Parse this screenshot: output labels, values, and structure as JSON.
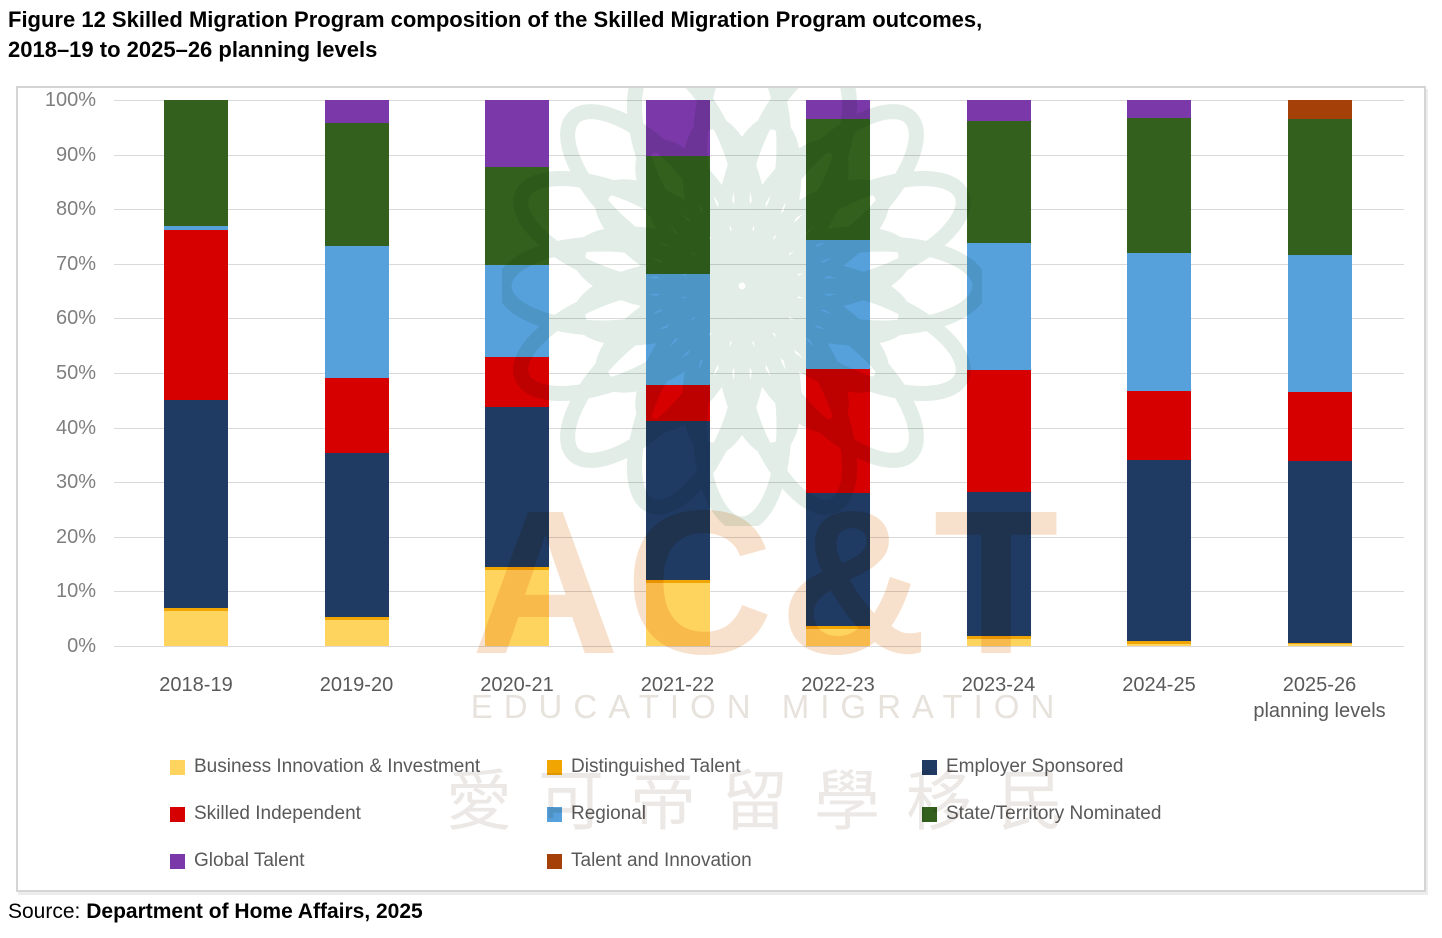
{
  "title": {
    "line1": "Figure 12 Skilled Migration Program composition of the Skilled Migration Program outcomes,",
    "line2": "2018–19 to 2025–26 planning levels"
  },
  "source": {
    "prefix": "Source: ",
    "bold": "Department of Home Affairs, 2025"
  },
  "watermark": {
    "brand": "AC&T",
    "subtitle": "EDUCATION MIGRATION",
    "cjk": "愛可帝留學移民"
  },
  "chart_data": {
    "type": "bar",
    "stacked": true,
    "percent": true,
    "title": "Skilled Migration Program composition, 2018–19 to 2025–26 planning levels",
    "xlabel": "",
    "ylabel": "",
    "ylim": [
      0,
      100
    ],
    "grid": true,
    "legend_position": "bottom",
    "y_ticks": [
      "100%",
      "90%",
      "80%",
      "70%",
      "60%",
      "50%",
      "40%",
      "30%",
      "20%",
      "10%",
      "0%"
    ],
    "categories": [
      "2018-19",
      "2019-20",
      "2020-21",
      "2021-22",
      "2022-23",
      "2023-24",
      "2024-25",
      "2025-26"
    ],
    "category_sublabels": [
      "",
      "",
      "",
      "",
      "",
      "",
      "",
      "planning levels"
    ],
    "series": [
      {
        "name": "Business Innovation & Investment",
        "color": "#FFD45E",
        "values": [
          6.5,
          4.8,
          14.0,
          11.6,
          3.1,
          1.3,
          0.4,
          0.3
        ]
      },
      {
        "name": "Distinguished Talent",
        "color": "#F0A500",
        "values": [
          0.5,
          0.5,
          0.5,
          0.5,
          0.5,
          0.5,
          0.5,
          0.3
        ]
      },
      {
        "name": "Employer Sponsored",
        "color": "#1F3A63",
        "values": [
          38.0,
          30.0,
          29.2,
          29.1,
          24.4,
          26.5,
          33.2,
          33.3
        ]
      },
      {
        "name": "Skilled Independent",
        "color": "#D60000",
        "values": [
          31.2,
          13.7,
          9.2,
          6.6,
          22.7,
          22.2,
          12.7,
          12.7
        ]
      },
      {
        "name": "Regional",
        "color": "#56A0DB",
        "values": [
          0.8,
          24.3,
          16.9,
          20.3,
          23.7,
          23.3,
          25.1,
          25.1
        ]
      },
      {
        "name": "State/Territory Nominated",
        "color": "#33601D",
        "values": [
          23.0,
          22.5,
          18.0,
          21.7,
          22.1,
          22.3,
          24.9,
          24.9
        ]
      },
      {
        "name": "Global Talent",
        "color": "#7B38A8",
        "values": [
          0.0,
          4.2,
          12.2,
          10.2,
          3.5,
          3.9,
          3.2,
          0.0
        ]
      },
      {
        "name": "Talent and Innovation",
        "color": "#A54108",
        "values": [
          0.0,
          0.0,
          0.0,
          0.0,
          0.0,
          0.0,
          0.0,
          3.4
        ]
      }
    ],
    "legend_rows": [
      [
        0,
        1,
        2
      ],
      [
        3,
        4,
        5
      ],
      [
        6,
        7
      ]
    ]
  }
}
